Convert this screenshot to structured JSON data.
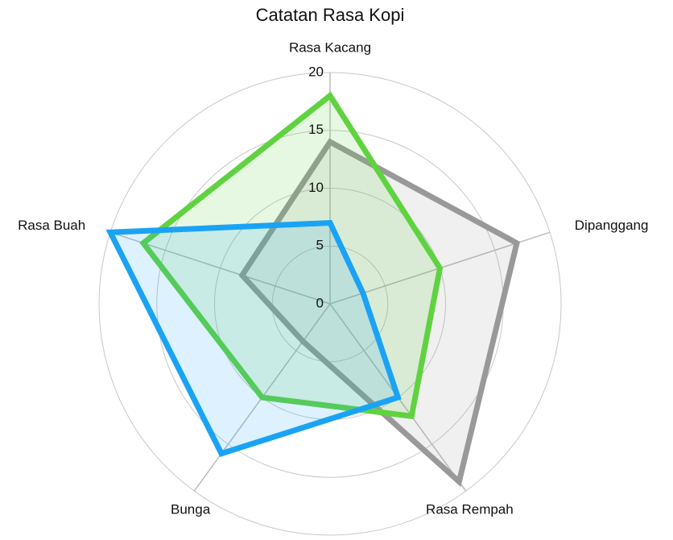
{
  "chart_data": {
    "type": "radar",
    "title": "Catatan Rasa Kopi",
    "categories": [
      "Rasa Kacang",
      "Dipanggang",
      "Rasa Rempah",
      "Bunga",
      "Rasa Buah"
    ],
    "ylim": [
      0,
      20
    ],
    "yticks": [
      0,
      5,
      10,
      15,
      20
    ],
    "grid": true,
    "series": [
      {
        "color": "#999999",
        "values": [
          14,
          17,
          19,
          4,
          8
        ]
      },
      {
        "color": "#5fd33f",
        "values": [
          18,
          10,
          12,
          10,
          17
        ]
      },
      {
        "color": "#1aa3f5",
        "values": [
          7,
          3,
          10,
          16,
          20
        ]
      }
    ]
  }
}
